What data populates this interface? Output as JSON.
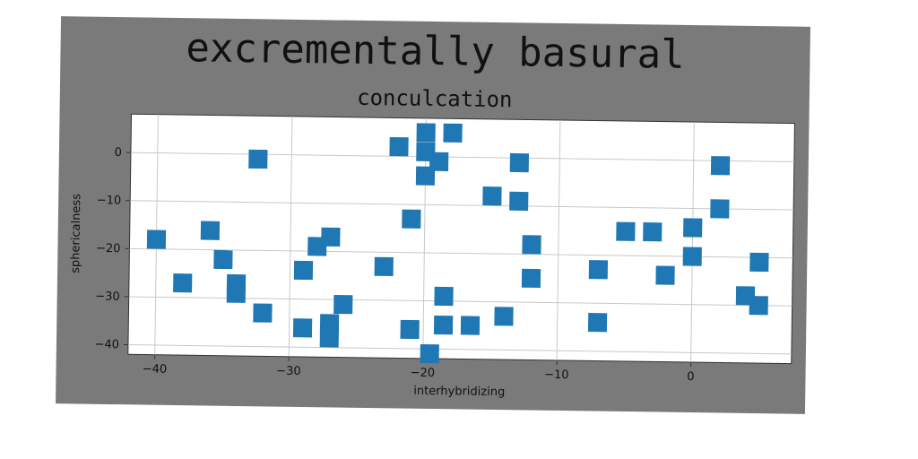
{
  "chart_data": {
    "type": "scatter",
    "suptitle": "excrementally basural",
    "title": "conculcation",
    "xlabel": "interhybridizing",
    "ylabel": "sphericalness",
    "xlim": [
      -42,
      7.5
    ],
    "ylim": [
      -42,
      8
    ],
    "xticks": [
      -40,
      -30,
      -20,
      -10,
      0
    ],
    "yticks": [
      0,
      -10,
      -20,
      -30,
      -40
    ],
    "grid": true,
    "marker": "square",
    "color": "#1f77b4",
    "points": [
      {
        "x": -40,
        "y": -18
      },
      {
        "x": -38,
        "y": -27
      },
      {
        "x": -36,
        "y": -16
      },
      {
        "x": -35,
        "y": -22
      },
      {
        "x": -34,
        "y": -27
      },
      {
        "x": -34,
        "y": -29
      },
      {
        "x": -32.5,
        "y": -1
      },
      {
        "x": -32,
        "y": -33
      },
      {
        "x": -29,
        "y": -24
      },
      {
        "x": -29,
        "y": -36
      },
      {
        "x": -28,
        "y": -19
      },
      {
        "x": -27,
        "y": -17
      },
      {
        "x": -27,
        "y": -35
      },
      {
        "x": -27,
        "y": -38
      },
      {
        "x": -26,
        "y": -31
      },
      {
        "x": -23,
        "y": -23
      },
      {
        "x": -22,
        "y": 2
      },
      {
        "x": -21,
        "y": -13
      },
      {
        "x": -21,
        "y": -36
      },
      {
        "x": -20,
        "y": 5
      },
      {
        "x": -20,
        "y": 1
      },
      {
        "x": -20,
        "y": -4
      },
      {
        "x": -19.5,
        "y": -41
      },
      {
        "x": -19,
        "y": -1
      },
      {
        "x": -18.5,
        "y": -29
      },
      {
        "x": -18.5,
        "y": -35
      },
      {
        "x": -18,
        "y": 5
      },
      {
        "x": -16.5,
        "y": -35
      },
      {
        "x": -15,
        "y": -8
      },
      {
        "x": -14,
        "y": -33
      },
      {
        "x": -13,
        "y": -1
      },
      {
        "x": -13,
        "y": -9
      },
      {
        "x": -12,
        "y": -18
      },
      {
        "x": -12,
        "y": -25
      },
      {
        "x": -7,
        "y": -23
      },
      {
        "x": -7,
        "y": -34
      },
      {
        "x": -5,
        "y": -15
      },
      {
        "x": -3,
        "y": -15
      },
      {
        "x": -2,
        "y": -24
      },
      {
        "x": 0,
        "y": -14
      },
      {
        "x": 0,
        "y": -20
      },
      {
        "x": 2,
        "y": -1
      },
      {
        "x": 2,
        "y": -10
      },
      {
        "x": 4,
        "y": -28
      },
      {
        "x": 5,
        "y": -21
      },
      {
        "x": 5,
        "y": -30
      }
    ]
  }
}
